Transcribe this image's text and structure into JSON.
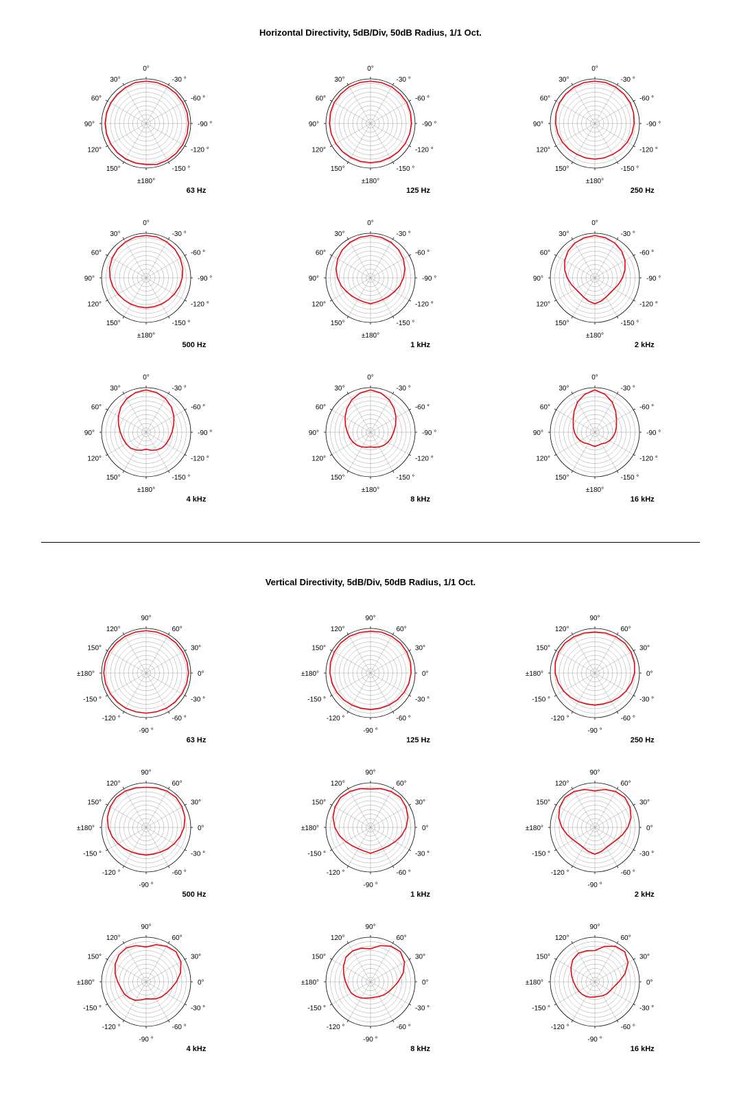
{
  "sections": [
    {
      "title": "Horizontal Directivity, 5dB/Div, 50dB Radius, 1/1 Oct.",
      "angleLabels": [
        {
          "deg": 0,
          "text": "0°",
          "anchor": "middle",
          "pos": "top"
        },
        {
          "deg": 30,
          "text": "-30 °",
          "anchor": "start"
        },
        {
          "deg": 60,
          "text": "-60 °",
          "anchor": "start"
        },
        {
          "deg": 90,
          "text": "-90 °",
          "anchor": "start"
        },
        {
          "deg": 120,
          "text": "-120 °",
          "anchor": "start"
        },
        {
          "deg": 150,
          "text": "-150 °",
          "anchor": "start"
        },
        {
          "deg": 180,
          "text": "±180°",
          "anchor": "middle",
          "pos": "bottom"
        },
        {
          "deg": 210,
          "text": "150°",
          "anchor": "end"
        },
        {
          "deg": 240,
          "text": "120°",
          "anchor": "end"
        },
        {
          "deg": 270,
          "text": "90°",
          "anchor": "end"
        },
        {
          "deg": 300,
          "text": "60°",
          "anchor": "end"
        },
        {
          "deg": 330,
          "text": "30°",
          "anchor": "end"
        }
      ],
      "plots": [
        {
          "freq": "63 Hz",
          "data": [
            0.95,
            0.95,
            0.95,
            0.95,
            0.95,
            0.95,
            0.95,
            0.95,
            0.95,
            0.95,
            0.95,
            0.95,
            0.92,
            0.92,
            0.92,
            0.92,
            0.92,
            0.92,
            0.92,
            0.92,
            0.92,
            0.92,
            0.93,
            0.95
          ]
        },
        {
          "freq": "125 Hz",
          "data": [
            0.95,
            0.95,
            0.95,
            0.94,
            0.94,
            0.93,
            0.92,
            0.91,
            0.9,
            0.89,
            0.88,
            0.88,
            0.88,
            0.88,
            0.88,
            0.89,
            0.9,
            0.91,
            0.92,
            0.93,
            0.94,
            0.94,
            0.95,
            0.95
          ]
        },
        {
          "freq": "250 Hz",
          "data": [
            0.95,
            0.95,
            0.94,
            0.93,
            0.92,
            0.9,
            0.88,
            0.86,
            0.84,
            0.82,
            0.8,
            0.8,
            0.8,
            0.8,
            0.8,
            0.82,
            0.84,
            0.86,
            0.88,
            0.9,
            0.92,
            0.93,
            0.94,
            0.95
          ]
        },
        {
          "freq": "500 Hz",
          "data": [
            0.95,
            0.95,
            0.93,
            0.91,
            0.88,
            0.85,
            0.81,
            0.77,
            0.73,
            0.7,
            0.68,
            0.67,
            0.67,
            0.67,
            0.68,
            0.7,
            0.73,
            0.77,
            0.81,
            0.85,
            0.88,
            0.91,
            0.93,
            0.95
          ]
        },
        {
          "freq": "1 kHz",
          "data": [
            0.95,
            0.94,
            0.92,
            0.89,
            0.85,
            0.8,
            0.74,
            0.68,
            0.62,
            0.58,
            0.56,
            0.56,
            0.58,
            0.56,
            0.56,
            0.58,
            0.62,
            0.68,
            0.74,
            0.8,
            0.85,
            0.89,
            0.92,
            0.94
          ]
        },
        {
          "freq": "2 kHz",
          "data": [
            0.95,
            0.93,
            0.9,
            0.85,
            0.78,
            0.7,
            0.62,
            0.55,
            0.5,
            0.48,
            0.5,
            0.54,
            0.58,
            0.54,
            0.5,
            0.48,
            0.5,
            0.55,
            0.62,
            0.7,
            0.78,
            0.85,
            0.9,
            0.93
          ]
        },
        {
          "freq": "4 kHz",
          "data": [
            0.95,
            0.92,
            0.87,
            0.8,
            0.72,
            0.64,
            0.58,
            0.54,
            0.52,
            0.5,
            0.46,
            0.42,
            0.38,
            0.42,
            0.46,
            0.5,
            0.52,
            0.54,
            0.58,
            0.64,
            0.72,
            0.8,
            0.87,
            0.92
          ]
        },
        {
          "freq": "8 kHz",
          "data": [
            0.95,
            0.91,
            0.84,
            0.75,
            0.66,
            0.58,
            0.52,
            0.48,
            0.45,
            0.42,
            0.38,
            0.35,
            0.33,
            0.35,
            0.38,
            0.42,
            0.45,
            0.48,
            0.52,
            0.58,
            0.66,
            0.75,
            0.84,
            0.91
          ]
        },
        {
          "freq": "16 kHz",
          "data": [
            0.95,
            0.88,
            0.78,
            0.66,
            0.56,
            0.5,
            0.46,
            0.42,
            0.38,
            0.34,
            0.3,
            0.3,
            0.32,
            0.3,
            0.3,
            0.34,
            0.38,
            0.42,
            0.46,
            0.5,
            0.56,
            0.66,
            0.78,
            0.88
          ]
        }
      ]
    },
    {
      "title": "Vertical Directivity, 5dB/Div, 50dB Radius, 1/1 Oct.",
      "angleLabels": [
        {
          "deg": 0,
          "text": "90°",
          "anchor": "middle",
          "pos": "top"
        },
        {
          "deg": 30,
          "text": "60°",
          "anchor": "start"
        },
        {
          "deg": 60,
          "text": "30°",
          "anchor": "start"
        },
        {
          "deg": 90,
          "text": "0°",
          "anchor": "start"
        },
        {
          "deg": 120,
          "text": "-30 °",
          "anchor": "start"
        },
        {
          "deg": 150,
          "text": "-60 °",
          "anchor": "start"
        },
        {
          "deg": 180,
          "text": "-90 °",
          "anchor": "middle",
          "pos": "bottom"
        },
        {
          "deg": 210,
          "text": "-120 °",
          "anchor": "end"
        },
        {
          "deg": 240,
          "text": "-150 °",
          "anchor": "end"
        },
        {
          "deg": 270,
          "text": "±180°",
          "anchor": "end"
        },
        {
          "deg": 300,
          "text": "150°",
          "anchor": "end"
        },
        {
          "deg": 330,
          "text": "120°",
          "anchor": "end"
        }
      ],
      "plots": [
        {
          "freq": "63 Hz",
          "data": [
            0.95,
            0.95,
            0.95,
            0.95,
            0.95,
            0.95,
            0.95,
            0.94,
            0.93,
            0.92,
            0.91,
            0.9,
            0.9,
            0.9,
            0.91,
            0.92,
            0.93,
            0.94,
            0.95,
            0.95,
            0.95,
            0.95,
            0.95,
            0.95
          ]
        },
        {
          "freq": "125 Hz",
          "data": [
            0.94,
            0.95,
            0.95,
            0.95,
            0.94,
            0.93,
            0.91,
            0.89,
            0.87,
            0.85,
            0.83,
            0.82,
            0.82,
            0.82,
            0.83,
            0.85,
            0.87,
            0.89,
            0.91,
            0.93,
            0.94,
            0.95,
            0.95,
            0.94
          ]
        },
        {
          "freq": "250 Hz",
          "data": [
            0.92,
            0.93,
            0.94,
            0.95,
            0.94,
            0.92,
            0.89,
            0.85,
            0.81,
            0.77,
            0.74,
            0.72,
            0.72,
            0.72,
            0.74,
            0.77,
            0.81,
            0.85,
            0.89,
            0.92,
            0.94,
            0.95,
            0.94,
            0.93
          ]
        },
        {
          "freq": "500 Hz",
          "data": [
            0.9,
            0.92,
            0.94,
            0.95,
            0.93,
            0.9,
            0.85,
            0.79,
            0.73,
            0.68,
            0.64,
            0.62,
            0.62,
            0.62,
            0.64,
            0.68,
            0.73,
            0.79,
            0.85,
            0.9,
            0.93,
            0.95,
            0.94,
            0.92
          ]
        },
        {
          "freq": "1 kHz",
          "data": [
            0.86,
            0.9,
            0.93,
            0.95,
            0.92,
            0.87,
            0.8,
            0.72,
            0.64,
            0.58,
            0.55,
            0.55,
            0.58,
            0.55,
            0.55,
            0.58,
            0.64,
            0.72,
            0.8,
            0.87,
            0.92,
            0.95,
            0.93,
            0.9
          ]
        },
        {
          "freq": "2 kHz",
          "data": [
            0.82,
            0.88,
            0.93,
            0.95,
            0.91,
            0.84,
            0.74,
            0.64,
            0.56,
            0.52,
            0.52,
            0.56,
            0.6,
            0.56,
            0.52,
            0.52,
            0.56,
            0.64,
            0.74,
            0.84,
            0.91,
            0.95,
            0.93,
            0.88
          ]
        },
        {
          "freq": "4 kHz",
          "data": [
            0.78,
            0.86,
            0.92,
            0.95,
            0.9,
            0.8,
            0.68,
            0.58,
            0.52,
            0.48,
            0.44,
            0.4,
            0.38,
            0.42,
            0.48,
            0.52,
            0.56,
            0.58,
            0.64,
            0.72,
            0.8,
            0.86,
            0.88,
            0.84
          ]
        },
        {
          "freq": "8 kHz",
          "data": [
            0.74,
            0.84,
            0.92,
            0.95,
            0.88,
            0.76,
            0.62,
            0.52,
            0.46,
            0.42,
            0.38,
            0.36,
            0.36,
            0.38,
            0.42,
            0.46,
            0.5,
            0.52,
            0.56,
            0.62,
            0.7,
            0.78,
            0.8,
            0.78
          ]
        },
        {
          "freq": "16 kHz",
          "data": [
            0.7,
            0.82,
            0.92,
            0.95,
            0.86,
            0.7,
            0.54,
            0.44,
            0.4,
            0.38,
            0.36,
            0.34,
            0.34,
            0.36,
            0.38,
            0.4,
            0.42,
            0.44,
            0.48,
            0.54,
            0.62,
            0.7,
            0.74,
            0.72
          ]
        }
      ]
    }
  ],
  "style": {
    "plotRadius": 65,
    "svgSize": 210,
    "numRings": 10,
    "numSpokes": 12,
    "lineColor": "#e30613",
    "lineWidth": 1.6,
    "gridColor": "#888888",
    "outerGridColor": "#000000",
    "gridWidth": 0.4,
    "backgroundColor": "#ffffff",
    "labelFontSize": 10,
    "titleFontSize": 13,
    "freqFontSize": 11,
    "labelOffset": 10
  }
}
